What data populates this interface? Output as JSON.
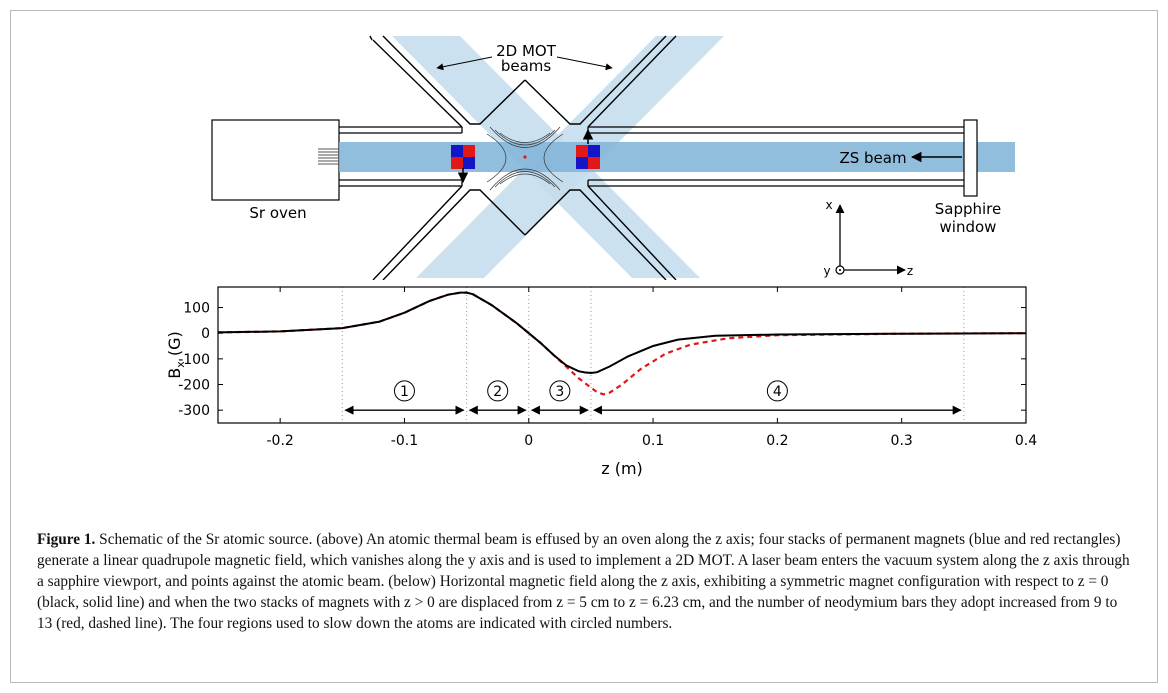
{
  "schematic": {
    "mot_label_1": "2D MOT",
    "mot_label_2": "beams",
    "oven_label": "Sr oven",
    "zs_label": "ZS beam",
    "window_label_1": "Sapphire",
    "window_label_2": "window",
    "axis_x": "x",
    "axis_y": "y",
    "axis_z": "z",
    "colors": {
      "beam": "#7fb3d8",
      "mot_beam": "#c3dcec",
      "magnet_blue": "#1515c8",
      "magnet_red": "#e01818"
    }
  },
  "chart_data": {
    "type": "line",
    "xlabel": "z (m)",
    "ylabel": "B_x (G)",
    "ylabel_main": "B",
    "ylabel_sub": "x",
    "ylabel_unit": " (G)",
    "xlim": [
      -0.25,
      0.4
    ],
    "ylim": [
      -350,
      180
    ],
    "xticks": [
      -0.2,
      -0.1,
      0,
      0.1,
      0.2,
      0.3,
      0.4
    ],
    "xtick_labels": [
      "-0.2",
      "-0.1",
      "0",
      "0.1",
      "0.2",
      "0.3",
      "0.4"
    ],
    "yticks": [
      100,
      0,
      -100,
      -200,
      -300
    ],
    "ytick_labels": [
      "100",
      "0",
      "-100",
      "-200",
      "-300"
    ],
    "vlines": [
      -0.15,
      -0.05,
      0,
      0.05,
      0.35
    ],
    "series": [
      {
        "style": "solid",
        "color": "#000000",
        "x": [
          -0.25,
          -0.2,
          -0.15,
          -0.12,
          -0.1,
          -0.08,
          -0.065,
          -0.055,
          -0.05,
          -0.045,
          -0.03,
          -0.01,
          0,
          0.01,
          0.02,
          0.03,
          0.04,
          0.045,
          0.05,
          0.055,
          0.065,
          0.08,
          0.1,
          0.12,
          0.15,
          0.2,
          0.3,
          0.4
        ],
        "y": [
          3,
          7,
          20,
          45,
          80,
          125,
          150,
          158,
          158,
          152,
          110,
          40,
          0,
          -40,
          -85,
          -125,
          -148,
          -153,
          -155,
          -152,
          -130,
          -90,
          -50,
          -25,
          -10,
          -5,
          -2,
          0
        ]
      },
      {
        "style": "dashed",
        "color": "#e01818",
        "x": [
          -0.25,
          -0.2,
          -0.15,
          -0.12,
          -0.1,
          -0.08,
          -0.065,
          -0.055,
          -0.05,
          -0.045,
          -0.03,
          -0.01,
          0,
          0.01,
          0.02,
          0.03,
          0.04,
          0.05,
          0.055,
          0.06,
          0.065,
          0.075,
          0.09,
          0.11,
          0.13,
          0.16,
          0.2,
          0.3,
          0.4
        ],
        "y": [
          3,
          7,
          20,
          45,
          80,
          125,
          150,
          158,
          158,
          152,
          110,
          40,
          0,
          -40,
          -85,
          -130,
          -175,
          -212,
          -230,
          -238,
          -232,
          -200,
          -140,
          -80,
          -45,
          -20,
          -8,
          -2,
          0
        ]
      }
    ],
    "regions": [
      {
        "label": "1",
        "from": -0.15,
        "to": -0.05
      },
      {
        "label": "2",
        "from": -0.05,
        "to": 0
      },
      {
        "label": "3",
        "from": 0,
        "to": 0.05
      },
      {
        "label": "4",
        "from": 0.05,
        "to": 0.35
      }
    ]
  },
  "caption": {
    "lead": "Figure 1.",
    "text": " Schematic of the Sr atomic source. (above) An atomic thermal beam is effused by an oven along the z axis; four stacks of permanent magnets (blue and red rectangles) generate a linear quadrupole magnetic field, which vanishes along the y axis and is used to implement a 2D MOT. A laser beam enters the vacuum system along the z axis through a sapphire viewport, and points against the atomic beam. (below) Horizontal magnetic field along the z axis, exhibiting a symmetric magnet configuration with respect to z = 0 (black, solid line) and when the two stacks of magnets with z > 0 are displaced from z = 5 cm to z = 6.23 cm, and the number of neodymium bars they adopt increased from 9 to 13 (red, dashed line). The four regions used to slow down the atoms are indicated with circled numbers."
  }
}
